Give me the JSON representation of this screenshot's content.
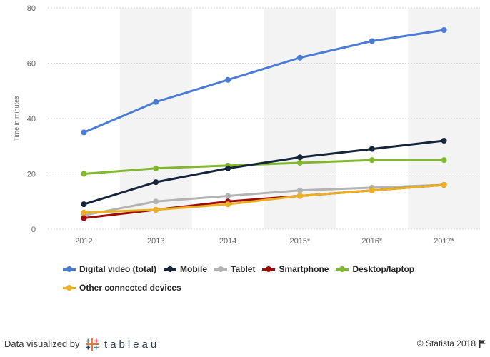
{
  "chart_data": {
    "type": "line",
    "categories": [
      "2012",
      "2013",
      "2014",
      "2015*",
      "2016*",
      "2017*"
    ],
    "series": [
      {
        "name": "Digital video (total)",
        "color": "#4a7cd6",
        "values": [
          35,
          46,
          54,
          62,
          68,
          72
        ]
      },
      {
        "name": "Mobile",
        "color": "#17253a",
        "values": [
          9,
          17,
          22,
          26,
          29,
          32
        ]
      },
      {
        "name": "Tablet",
        "color": "#b3b3b3",
        "values": [
          5,
          10,
          12,
          14,
          15,
          16
        ]
      },
      {
        "name": "Smartphone",
        "color": "#a10a0a",
        "values": [
          4,
          7,
          10,
          12,
          14,
          16
        ]
      },
      {
        "name": "Desktop/laptop",
        "color": "#80b82e",
        "values": [
          20,
          22,
          23,
          24,
          25,
          25
        ]
      },
      {
        "name": "Other connected devices",
        "color": "#eab021",
        "values": [
          6,
          7,
          9,
          12,
          14,
          16
        ]
      }
    ],
    "xlabel": "",
    "ylabel": "Time in minutes",
    "ylim": [
      0,
      80
    ],
    "yticks": [
      0,
      20,
      40,
      60,
      80
    ],
    "grid": true,
    "legend_position": "bottom"
  },
  "footer": {
    "credit_label": "Data visualized by",
    "tableau_word": "tableau",
    "copyright": "© Statista 2018",
    "flag_icon": "flag-icon"
  }
}
